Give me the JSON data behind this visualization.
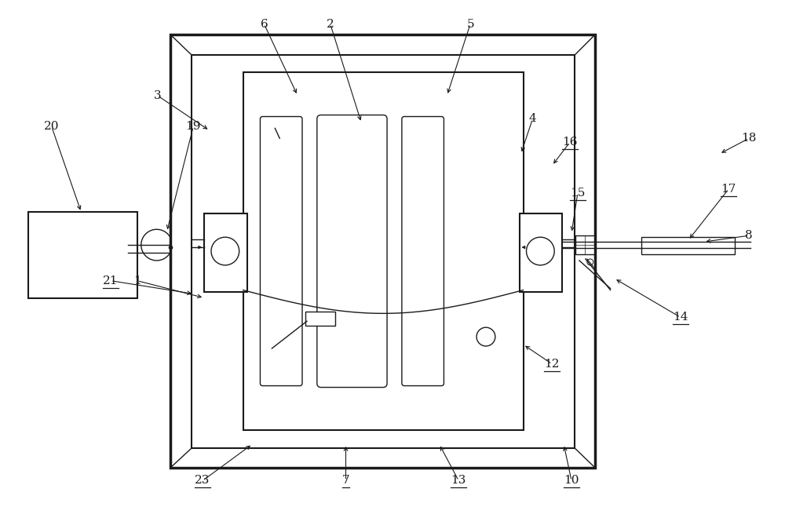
{
  "bg_color": "#ffffff",
  "line_color": "#1a1a1a",
  "fig_width": 10.0,
  "fig_height": 6.46,
  "underlined": [
    "7",
    "10",
    "12",
    "13",
    "14",
    "15",
    "16",
    "17",
    "21",
    "23"
  ]
}
